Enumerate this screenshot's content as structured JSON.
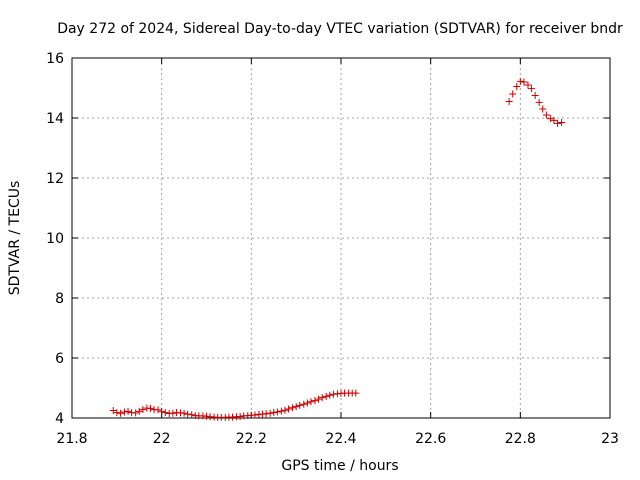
{
  "chart_data": {
    "type": "scatter",
    "title": "Day 272 of 2024, Sidereal Day-to-day VTEC variation (SDTVAR) for receiver bndr",
    "xlabel": "GPS time / hours",
    "ylabel": "SDTVAR / TECUs",
    "xlim": [
      21.8,
      23
    ],
    "ylim": [
      4,
      16
    ],
    "x_ticks": [
      21.8,
      22,
      22.2,
      22.4,
      22.6,
      22.8,
      23
    ],
    "x_tick_labels": [
      "21.8",
      "22",
      "22.2",
      "22.4",
      "22.6",
      "22.8",
      "23"
    ],
    "y_ticks": [
      4,
      6,
      8,
      10,
      12,
      14,
      16
    ],
    "y_tick_labels": [
      "4",
      "6",
      "8",
      "10",
      "12",
      "14",
      "16"
    ],
    "grid": true,
    "marker": "plus",
    "color": "#cc0000",
    "series": [
      {
        "x": [
          21.892,
          21.9,
          21.908,
          21.917,
          21.925,
          21.933,
          21.942,
          21.95,
          21.958,
          21.967,
          21.975,
          21.983,
          21.992,
          22.0,
          22.008,
          22.017,
          22.025,
          22.033,
          22.042,
          22.05,
          22.058,
          22.067,
          22.075,
          22.083,
          22.092,
          22.1,
          22.108,
          22.117,
          22.125,
          22.133,
          22.142,
          22.15,
          22.158,
          22.167,
          22.175,
          22.183,
          22.192,
          22.2,
          22.208,
          22.217,
          22.225,
          22.233,
          22.242,
          22.25,
          22.258,
          22.267,
          22.275,
          22.283,
          22.292,
          22.3,
          22.308,
          22.317,
          22.325,
          22.333,
          22.342,
          22.35,
          22.358,
          22.367,
          22.375,
          22.383,
          22.392,
          22.4,
          22.408,
          22.417,
          22.425,
          22.433
        ],
        "y": [
          4.25,
          4.18,
          4.16,
          4.2,
          4.22,
          4.18,
          4.17,
          4.22,
          4.28,
          4.33,
          4.32,
          4.28,
          4.27,
          4.22,
          4.18,
          4.15,
          4.16,
          4.18,
          4.17,
          4.16,
          4.13,
          4.11,
          4.08,
          4.07,
          4.07,
          4.06,
          4.04,
          4.03,
          4.02,
          4.02,
          4.02,
          4.03,
          4.03,
          4.04,
          4.05,
          4.07,
          4.08,
          4.09,
          4.1,
          4.12,
          4.13,
          4.14,
          4.16,
          4.18,
          4.2,
          4.23,
          4.26,
          4.3,
          4.34,
          4.38,
          4.42,
          4.46,
          4.5,
          4.54,
          4.58,
          4.63,
          4.68,
          4.72,
          4.76,
          4.79,
          4.81,
          4.82,
          4.83,
          4.83,
          4.83,
          4.83
        ]
      },
      {
        "x": [
          22.775,
          22.783,
          22.792,
          22.8,
          22.808,
          22.817,
          22.825,
          22.833,
          22.842,
          22.85,
          22.858,
          22.867,
          22.875,
          22.883,
          22.892
        ],
        "y": [
          14.55,
          14.8,
          15.05,
          15.22,
          15.2,
          15.1,
          14.98,
          14.75,
          14.52,
          14.3,
          14.1,
          13.98,
          13.92,
          13.82,
          13.85
        ]
      }
    ]
  }
}
